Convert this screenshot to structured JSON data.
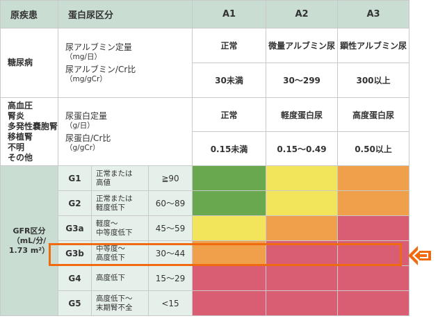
{
  "header": {
    "disease": "原疾患",
    "proteinuria_class": "蛋白尿区分",
    "a1": "A1",
    "a2": "A2",
    "a3": "A3"
  },
  "diabetes": {
    "disease": "糖尿病",
    "measure1": "尿アルブミン定量",
    "unit1": "（mg/日）",
    "measure2": "尿アルブミン/Cr比",
    "unit2": "（mg/gCr）",
    "a1_label": "正常",
    "a2_label": "微量アルブミン尿",
    "a3_label": "顕性アルブミン尿",
    "a1_value": "30未満",
    "a2_value": "30〜299",
    "a3_value": "300以上"
  },
  "other": {
    "diseases": [
      "高血圧",
      "腎炎",
      "多発性嚢胞腎",
      "移植腎",
      "不明",
      "その他"
    ],
    "measure1": "尿蛋白定量",
    "unit1": "（g/日）",
    "measure2": "尿蛋白/Cr比",
    "unit2": "（g/gCr）",
    "a1_label": "正常",
    "a2_label": "軽度蛋白尿",
    "a3_label": "高度蛋白尿",
    "a1_value": "0.15未満",
    "a2_value": "0.15〜0.49",
    "a3_value": "0.50以上"
  },
  "gfr": {
    "title": "GFR区分",
    "unit": "（mL/分/",
    "unit2": "1.73 m²）",
    "rows": [
      {
        "grade": "G1",
        "desc1": "正常または",
        "desc2": "高値",
        "range": "≧90",
        "colors": [
          "green",
          "yellow",
          "orange"
        ]
      },
      {
        "grade": "G2",
        "desc1": "正常または",
        "desc2": "軽度低下",
        "range": "60〜89",
        "colors": [
          "green",
          "yellow",
          "orange"
        ]
      },
      {
        "grade": "G3a",
        "desc1": "軽度〜",
        "desc2": "中等度低下",
        "range": "45〜59",
        "colors": [
          "yellow",
          "orange",
          "red"
        ]
      },
      {
        "grade": "G3b",
        "desc1": "中等度〜",
        "desc2": "高度低下",
        "range": "30〜44",
        "colors": [
          "orange",
          "red",
          "red"
        ]
      },
      {
        "grade": "G4",
        "desc1": "高度低下",
        "desc2": "",
        "range": "15〜29",
        "colors": [
          "red",
          "red",
          "red"
        ]
      },
      {
        "grade": "G5",
        "desc1": "高度低下〜",
        "desc2": "末期腎不全",
        "range": "<15",
        "colors": [
          "red",
          "red",
          "red"
        ]
      }
    ]
  },
  "colors": {
    "green": "#6aa84f",
    "yellow": "#f3e55b",
    "orange": "#f0a04b",
    "red": "#d95d73",
    "highlight": "#f06a10"
  },
  "highlighted_row": "G3b"
}
